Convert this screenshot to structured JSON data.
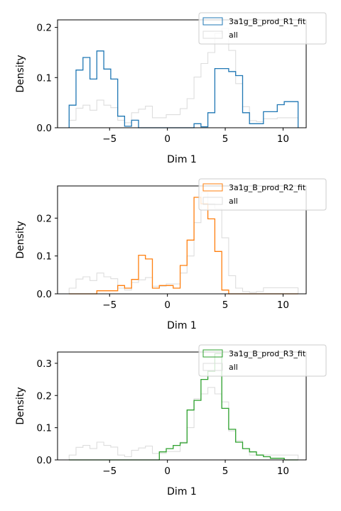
{
  "chart_data": [
    {
      "type": "histogram-step",
      "xlabel": "Dim 1",
      "ylabel": "Density",
      "xlim": [
        -9.5,
        12
      ],
      "ylim": [
        0,
        0.215
      ],
      "xticks": [
        -5,
        0,
        5,
        10
      ],
      "xtick_labels": [
        "−5",
        "0",
        "5",
        "10"
      ],
      "yticks": [
        0,
        0.1,
        0.2
      ],
      "ytick_labels": [
        "0.0",
        "0.1",
        "0.2"
      ],
      "legend_position": "top-right",
      "bin_edges": [
        -8.5,
        -7.9,
        -7.3,
        -6.7,
        -6.1,
        -5.5,
        -4.9,
        -4.3,
        -3.7,
        -3.1,
        -2.5,
        -1.9,
        -1.3,
        -0.7,
        -0.1,
        0.5,
        1.1,
        1.7,
        2.3,
        2.9,
        3.5,
        4.1,
        4.7,
        5.3,
        5.9,
        6.5,
        7.1,
        7.7,
        8.3,
        8.9,
        9.5,
        10.1,
        10.7,
        11.3
      ],
      "series": [
        {
          "name": "3a1g_B_prod_R1_fit",
          "color": "#1f77b4",
          "values": [
            0.045,
            0.115,
            0.14,
            0.097,
            0.153,
            0.117,
            0.097,
            0.023,
            0.003,
            0.015,
            0.0,
            0.0,
            0.0,
            0.0,
            0.0,
            0.0,
            0.0,
            0.0,
            0.008,
            0.002,
            0.03,
            0.118,
            0.118,
            0.112,
            0.104,
            0.03,
            0.008,
            0.008,
            0.032,
            0.032,
            0.046,
            0.052,
            0.052
          ]
        },
        {
          "name": "all",
          "color": "#dddddd",
          "values": [
            0.015,
            0.039,
            0.045,
            0.035,
            0.055,
            0.045,
            0.04,
            0.015,
            0.01,
            0.03,
            0.037,
            0.043,
            0.02,
            0.02,
            0.026,
            0.026,
            0.038,
            0.058,
            0.101,
            0.128,
            0.15,
            0.188,
            0.198,
            0.154,
            0.088,
            0.042,
            0.014,
            0.012,
            0.018,
            0.018,
            0.02,
            0.02,
            0.02
          ]
        }
      ]
    },
    {
      "type": "histogram-step",
      "xlabel": "Dim 1",
      "ylabel": "Density",
      "xlim": [
        -9.5,
        12
      ],
      "ylim": [
        0,
        0.285
      ],
      "xticks": [
        -5,
        0,
        5,
        10
      ],
      "xtick_labels": [
        "−5",
        "0",
        "5",
        "10"
      ],
      "yticks": [
        0,
        0.1,
        0.2
      ],
      "ytick_labels": [
        "0.0",
        "0.1",
        "0.2"
      ],
      "legend_position": "top-right",
      "bin_edges": [
        -8.5,
        -7.9,
        -7.3,
        -6.7,
        -6.1,
        -5.5,
        -4.9,
        -4.3,
        -3.7,
        -3.1,
        -2.5,
        -1.9,
        -1.3,
        -0.7,
        -0.1,
        0.5,
        1.1,
        1.7,
        2.3,
        2.9,
        3.5,
        4.1,
        4.7,
        5.3,
        5.9,
        6.5,
        7.1,
        7.7,
        8.3,
        8.9,
        9.5,
        10.1,
        10.7,
        11.3
      ],
      "series": [
        {
          "name": "3a1g_B_prod_R2_fit",
          "color": "#ff7f0e",
          "values": [
            0.0,
            0.0,
            0.0,
            0.0,
            0.008,
            0.008,
            0.008,
            0.022,
            0.015,
            0.038,
            0.102,
            0.092,
            0.015,
            0.022,
            0.022,
            0.015,
            0.075,
            0.142,
            0.255,
            0.238,
            0.198,
            0.112,
            0.01,
            0.0,
            0.0,
            0.0,
            0.0,
            0.0,
            0.0,
            0.0,
            0.0,
            0.0,
            0.0
          ]
        },
        {
          "name": "all",
          "color": "#dddddd",
          "values": [
            0.015,
            0.039,
            0.045,
            0.035,
            0.055,
            0.045,
            0.04,
            0.015,
            0.01,
            0.03,
            0.037,
            0.043,
            0.02,
            0.02,
            0.026,
            0.026,
            0.055,
            0.1,
            0.188,
            0.268,
            0.238,
            0.225,
            0.148,
            0.048,
            0.015,
            0.006,
            0.004,
            0.006,
            0.016,
            0.016,
            0.016,
            0.016,
            0.016
          ]
        }
      ]
    },
    {
      "type": "histogram-step",
      "xlabel": "Dim 1",
      "ylabel": "Density",
      "xlim": [
        -9.5,
        12
      ],
      "ylim": [
        0,
        0.335
      ],
      "xticks": [
        -5,
        0,
        5,
        10
      ],
      "xtick_labels": [
        "−5",
        "0",
        "5",
        "10"
      ],
      "yticks": [
        0,
        0.1,
        0.2,
        0.3
      ],
      "ytick_labels": [
        "0.0",
        "0.1",
        "0.2",
        "0.3"
      ],
      "legend_position": "top-right",
      "bin_edges": [
        -8.5,
        -7.9,
        -7.3,
        -6.7,
        -6.1,
        -5.5,
        -4.9,
        -4.3,
        -3.7,
        -3.1,
        -2.5,
        -1.9,
        -1.3,
        -0.7,
        -0.1,
        0.5,
        1.1,
        1.7,
        2.3,
        2.9,
        3.5,
        4.1,
        4.7,
        5.3,
        5.9,
        6.5,
        7.1,
        7.7,
        8.3,
        8.9,
        9.5,
        10.1,
        10.7,
        11.3
      ],
      "series": [
        {
          "name": "3a1g_B_prod_R3_fit",
          "color": "#2ca02c",
          "values": [
            0.0,
            0.0,
            0.0,
            0.0,
            0.0,
            0.0,
            0.0,
            0.0,
            0.0,
            0.0,
            0.0,
            0.0,
            0.0,
            0.025,
            0.035,
            0.045,
            0.053,
            0.155,
            0.185,
            0.25,
            0.275,
            0.33,
            0.16,
            0.095,
            0.055,
            0.035,
            0.025,
            0.015,
            0.01,
            0.005,
            0.005,
            0.0,
            0.0
          ]
        },
        {
          "name": "all",
          "color": "#dddddd",
          "values": [
            0.015,
            0.039,
            0.045,
            0.035,
            0.055,
            0.045,
            0.04,
            0.015,
            0.01,
            0.03,
            0.037,
            0.043,
            0.02,
            0.02,
            0.026,
            0.026,
            0.055,
            0.1,
            0.19,
            0.205,
            0.225,
            0.205,
            0.18,
            0.09,
            0.06,
            0.035,
            0.015,
            0.015,
            0.015,
            0.015,
            0.015,
            0.015,
            0.015
          ]
        }
      ]
    }
  ]
}
